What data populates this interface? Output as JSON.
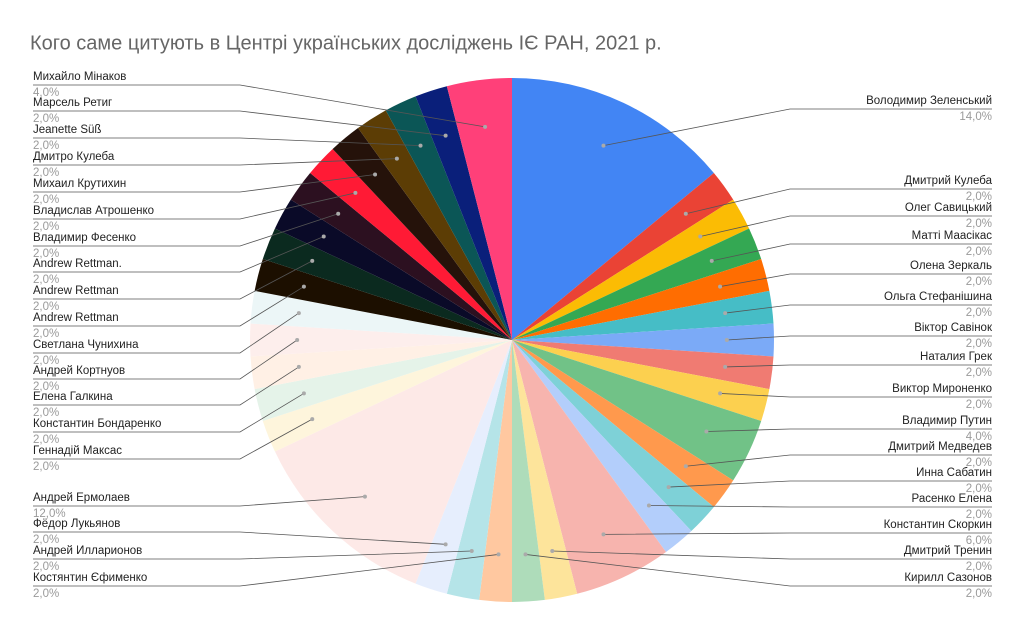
{
  "chart_data": {
    "type": "pie",
    "title": "Кого саме цитують в Центрі українських досліджень ІЄ РАН, 2021 р.",
    "categories": [
      "Володимир Зеленський",
      "Дмитрий  Кулеба",
      "Олег Савицький",
      "Матті Маасікас",
      "Олена  Зеркаль",
      "Ольга  Стефанішина",
      "Віктор Савінок",
      "Наталия  Грек",
      "Виктор Мироненко",
      "Владимир  Путин",
      "Дмитрий Медведев",
      "Инна Сабатин",
      "Расенко Елена",
      "Константин Скоркин",
      "Дмитрий Тренин",
      "Кирилл Сазонов",
      "Костянтин Єфименко",
      "Андрей Илларионов",
      "Фёдор Лукьянов",
      "Андрей Ермолаев",
      "Геннадій Максас",
      "Константин Бондаренко",
      "Елена  Галкина",
      "Андрей Кортнуов",
      "Светлана Чунихина",
      "Andrew  Rettman",
      "Andrew Rettman",
      "Andrew Rettman.",
      "Владимир Фесенко",
      "Владислав Атрошенко",
      "Михаил Крутихин",
      "Дмитро Кулеба",
      "Jeanette Süß",
      "Марсель Ретиг",
      "Михайло Мінаков"
    ],
    "values": [
      14,
      2,
      2,
      2,
      2,
      2,
      2,
      2,
      2,
      4,
      2,
      2,
      2,
      6,
      2,
      2,
      2,
      2,
      2,
      12,
      2,
      2,
      2,
      2,
      2,
      2,
      2,
      2,
      2,
      2,
      2,
      2,
      2,
      2,
      4
    ],
    "value_labels": [
      "14,0%",
      "2,0%",
      "2,0%",
      "2,0%",
      "2,0%",
      "2,0%",
      "2,0%",
      "2,0%",
      "2,0%",
      "4,0%",
      "2,0%",
      "2,0%",
      "2,0%",
      "6,0%",
      "2,0%",
      "2,0%",
      "2,0%",
      "2,0%",
      "2,0%",
      "12,0%",
      "2,0%",
      "2,0%",
      "2,0%",
      "2,0%",
      "2,0%",
      "2,0%",
      "2,0%",
      "2,0%",
      "2,0%",
      "2,0%",
      "2,0%",
      "2,0%",
      "2,0%",
      "2,0%",
      "4,0%"
    ],
    "colors": [
      "#4285f4",
      "#ea4335",
      "#fbbc04",
      "#34a853",
      "#ff6d01",
      "#46bdc6",
      "#7baaf7",
      "#f07b72",
      "#fcd04f",
      "#71c287",
      "#ff994d",
      "#7ed1d7",
      "#b3cefb",
      "#f7b4ae",
      "#fde49b",
      "#aedcba",
      "#ffc8a0",
      "#b5e4e8",
      "#e6eefd",
      "#fde9e7",
      "#fef5dc",
      "#e5f3e9",
      "#fff0e5",
      "#fdeeec",
      "#ecf6f7",
      "#1c0f00",
      "#0b2a1f",
      "#0a0a28",
      "#2c1020",
      "#ff1a35",
      "#25120a",
      "#5c3d05",
      "#0b5656",
      "#0a1f7a",
      "#ff4079"
    ]
  }
}
